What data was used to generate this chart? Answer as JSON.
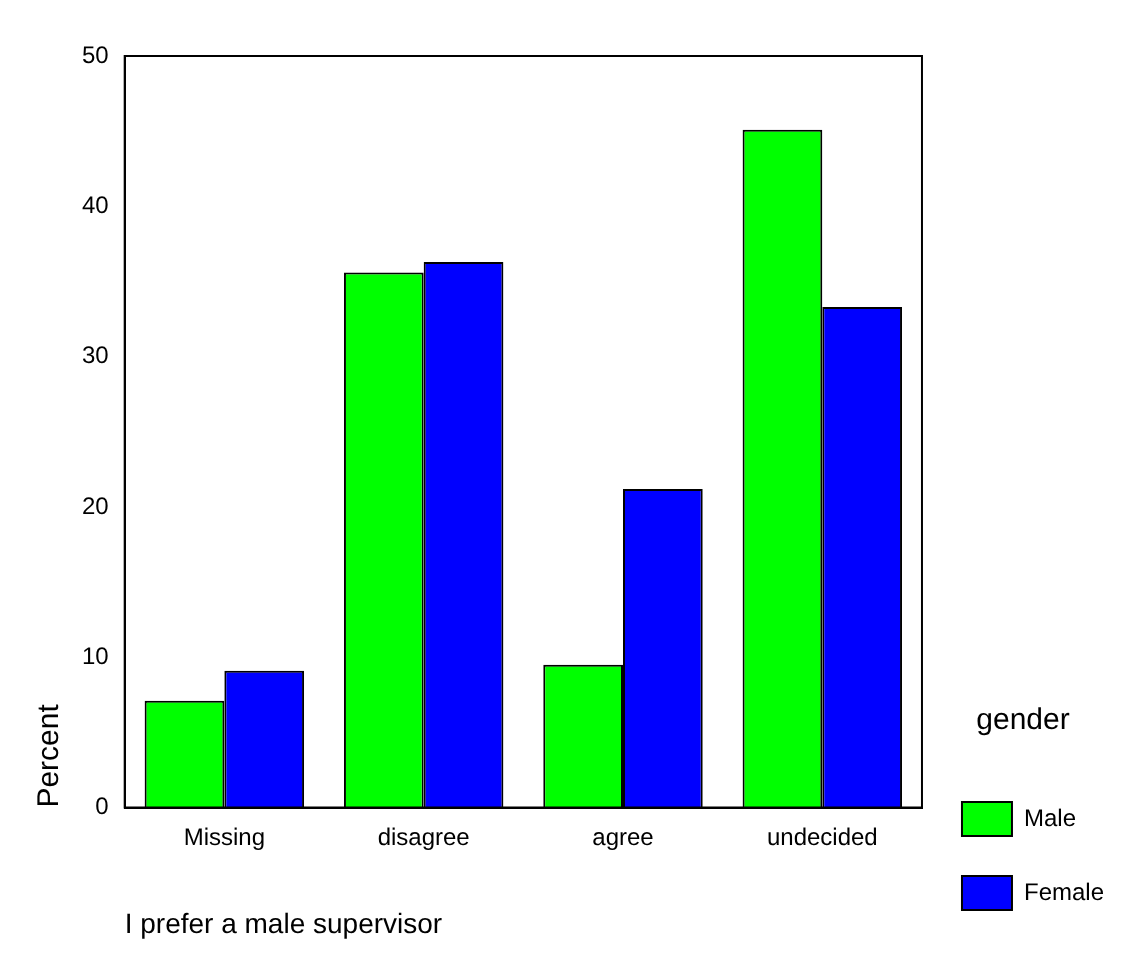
{
  "chart_data": {
    "type": "bar",
    "xlabel": "I prefer a male supervisor",
    "ylabel": "Percent",
    "legend_title": "gender",
    "categories": [
      "Missing",
      "disagree",
      "agree",
      "undecided"
    ],
    "series": [
      {
        "name": "Male",
        "color": "#00ff00",
        "values": [
          7.1,
          35.6,
          9.5,
          45.1
        ]
      },
      {
        "name": "Female",
        "color": "#0000ff",
        "values": [
          9.1,
          36.3,
          21.2,
          33.3
        ]
      }
    ],
    "ylim": [
      0,
      50
    ],
    "yticks": [
      0,
      10,
      20,
      30,
      40,
      50
    ],
    "grid": false,
    "legend": "right"
  }
}
